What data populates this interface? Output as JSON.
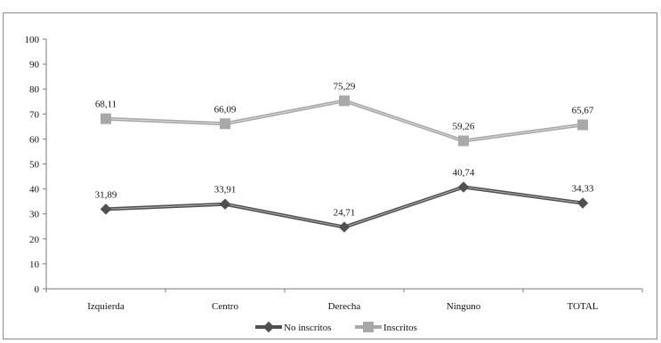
{
  "chart_data": {
    "type": "line",
    "title": "",
    "xlabel": "",
    "ylabel": "",
    "categories": [
      "Izquierda",
      "Centro",
      "Derecha",
      "Ninguno",
      "TOTAL"
    ],
    "ylim": [
      0,
      100
    ],
    "yticks": [
      "0",
      "10",
      "20",
      "30",
      "40",
      "50",
      "60",
      "70",
      "80",
      "90",
      "100"
    ],
    "grid": false,
    "legend_position": "bottom",
    "series": [
      {
        "name": "No inscritos",
        "values": [
          31.89,
          33.91,
          24.71,
          40.74,
          34.33
        ],
        "labels": [
          "31,89",
          "33,91",
          "24,71",
          "40,74",
          "34,33"
        ],
        "color": "#505050",
        "marker": "diamond"
      },
      {
        "name": "Inscritos",
        "values": [
          68.11,
          66.09,
          75.29,
          59.26,
          65.67
        ],
        "labels": [
          "68,11",
          "66,09",
          "75,29",
          "59,26",
          "65,67"
        ],
        "color": "#a8a8a8",
        "marker": "square"
      }
    ]
  }
}
